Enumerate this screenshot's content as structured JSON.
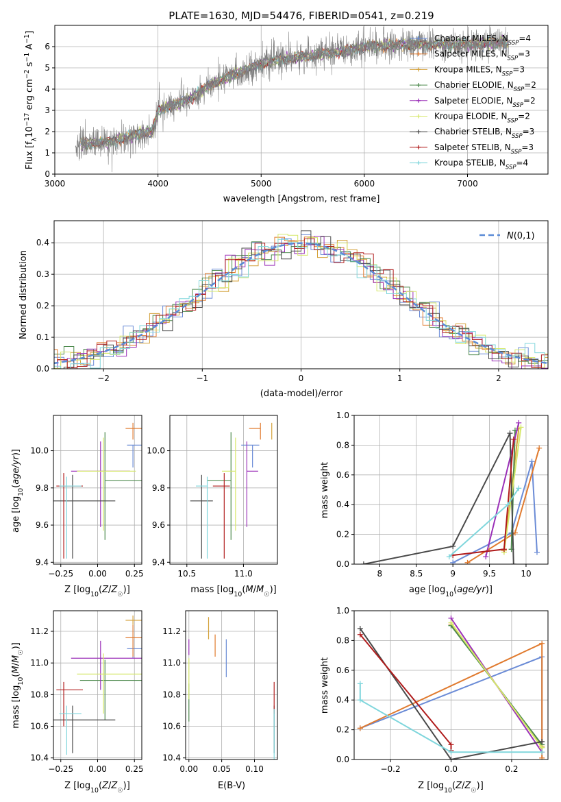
{
  "colors": {
    "grid": "#b0b0b0",
    "axis": "#000000",
    "spectrum": "#808080",
    "dashed": "#5b8bd6"
  },
  "series_list": [
    {
      "name": "Chabrier MILES, N$_{SSP}$=4",
      "label_main": "Chabrier MILES, N",
      "label_sub": "SSP",
      "label_tail": "=4",
      "color": "#6a8bd6"
    },
    {
      "name": "Salpeter MILES, N$_{SSP}$=3",
      "label_main": "Salpeter MILES, N",
      "label_sub": "SSP",
      "label_tail": "=3",
      "color": "#e07a2e"
    },
    {
      "name": "Kroupa MILES, N$_{SSP}$=3",
      "label_main": "Kroupa MILES, N",
      "label_sub": "SSP",
      "label_tail": "=3",
      "color": "#d4a13a"
    },
    {
      "name": "Chabrier ELODIE, N$_{SSP}$=2",
      "label_main": "Chabrier ELODIE, N",
      "label_sub": "SSP",
      "label_tail": "=2",
      "color": "#4e8a4e"
    },
    {
      "name": "Salpeter ELODIE, N$_{SSP}$=2",
      "label_main": "Salpeter ELODIE, N",
      "label_sub": "SSP",
      "label_tail": "=2",
      "color": "#9b30b8"
    },
    {
      "name": "Kroupa ELODIE, N$_{SSP}$=2",
      "label_main": "Kroupa ELODIE, N",
      "label_sub": "SSP",
      "label_tail": "=2",
      "color": "#d6e86a"
    },
    {
      "name": "Chabrier STELIB, N$_{SSP}$=3",
      "label_main": "Chabrier STELIB, N",
      "label_sub": "SSP",
      "label_tail": "=3",
      "color": "#4a4a4a"
    },
    {
      "name": "Salpeter STELIB, N$_{SSP}$=3",
      "label_main": "Salpeter STELIB, N",
      "label_sub": "SSP",
      "label_tail": "=3",
      "color": "#b01c1c"
    },
    {
      "name": "Kroupa STELIB, N$_{SSP}$=4",
      "label_main": "Kroupa STELIB, N",
      "label_sub": "SSP",
      "label_tail": "=4",
      "color": "#7fd6dc"
    }
  ],
  "chart_data": [
    {
      "id": "spectrum",
      "type": "line",
      "title": "PLATE=1630, MJD=54476, FIBERID=0541, z=0.219",
      "xlabel": "wavelength [Angstrom, rest frame]",
      "ylabel_parts": [
        "Flux [f",
        "λ",
        "10",
        "−17",
        " erg cm",
        "−2",
        " s",
        "−1",
        " A",
        "−1",
        "]"
      ],
      "xlim": [
        3000,
        7780
      ],
      "ylim": [
        0,
        7
      ],
      "xticks": [
        3000,
        4000,
        5000,
        6000,
        7000
      ],
      "yticks": [
        0,
        1,
        2,
        3,
        4,
        5,
        6
      ],
      "wavelength_range": [
        3200,
        7400
      ],
      "continuum": {
        "x": [
          3200,
          3500,
          3600,
          3800,
          3950,
          4000,
          4300,
          4500,
          4800,
          5000,
          5200,
          5500,
          5800,
          6000,
          6500,
          7000,
          7400
        ],
        "y": [
          1.4,
          1.5,
          1.6,
          1.9,
          2.0,
          3.0,
          3.5,
          4.2,
          4.8,
          5.2,
          5.4,
          5.6,
          5.8,
          6.0,
          6.1,
          6.1,
          6.2
        ]
      },
      "legend": "upper right"
    },
    {
      "id": "residuals",
      "type": "histogram",
      "xlabel": "(data-model)/error",
      "ylabel": "Normed distribution",
      "xlim": [
        -2.5,
        2.5
      ],
      "ylim": [
        0,
        0.47
      ],
      "xticks": [
        -2,
        -1,
        0,
        1,
        2
      ],
      "xtick_labels": [
        "−2",
        "−1",
        "0",
        "1",
        "2"
      ],
      "yticks": [
        0.0,
        0.1,
        0.2,
        0.3,
        0.4
      ],
      "bin_width": 0.1,
      "reference_label": "N(0,1)",
      "legend": "upper right"
    },
    {
      "id": "age_vs_Z",
      "type": "scatter",
      "xlabel": "Z [log10(Z/Z☉)]",
      "ylabel": "age  [log10(age/yr)]",
      "xlim": [
        -0.3,
        0.3
      ],
      "ylim": [
        9.39,
        10.19
      ],
      "xticks": [
        -0.25,
        0.0,
        0.25
      ],
      "xtick_labels": [
        "−0.25",
        "0.00",
        "0.25"
      ],
      "yticks": [
        9.4,
        9.6,
        9.8,
        10.0
      ],
      "points": [
        {
          "series": 0,
          "x": 0.24,
          "y": 10.03,
          "xerr": [
            0.04,
            0.06
          ],
          "yerr": [
            0.12,
            0.0
          ]
        },
        {
          "series": 1,
          "x": 0.24,
          "y": 10.12,
          "xerr": [
            0.05,
            0.07
          ],
          "yerr": [
            0.06,
            0.03
          ]
        },
        {
          "series": 3,
          "x": 0.05,
          "y": 9.84,
          "xerr": [
            0.0,
            0.3
          ],
          "yerr": [
            0.32,
            0.26
          ]
        },
        {
          "series": 4,
          "x": 0.02,
          "y": 9.89,
          "xerr": [
            0.2,
            0.2
          ],
          "yerr": [
            0.3,
            0.16
          ]
        },
        {
          "series": 5,
          "x": 0.04,
          "y": 9.89,
          "xerr": [
            0.18,
            0.22
          ],
          "yerr": [
            0.32,
            0.18
          ]
        },
        {
          "series": 6,
          "x": -0.17,
          "y": 9.73,
          "xerr": [
            0.13,
            0.29
          ],
          "yerr": [
            0.31,
            0.14
          ]
        },
        {
          "series": 7,
          "x": -0.23,
          "y": 9.81,
          "xerr": [
            0.05,
            0.13
          ],
          "yerr": [
            0.39,
            0.07
          ]
        },
        {
          "series": 8,
          "x": -0.21,
          "y": 9.81,
          "xerr": [
            0.05,
            0.1
          ],
          "yerr": [
            0.39,
            0.05
          ]
        }
      ]
    },
    {
      "id": "age_vs_mass",
      "type": "scatter",
      "xlabel": "mass [log10(M/M☉)]",
      "ylabel": "",
      "xlim": [
        10.35,
        11.3
      ],
      "ylim": [
        9.39,
        10.19
      ],
      "xticks": [
        10.5,
        11.0
      ],
      "xtick_labels": [
        "10.5",
        "11.0"
      ],
      "yticks": [
        9.4,
        9.6,
        9.8,
        10.0
      ],
      "points": [
        {
          "series": 0,
          "x": 11.08,
          "y": 10.03,
          "xerr": [
            0.1,
            0.06
          ],
          "yerr": [
            0.12,
            0.0
          ]
        },
        {
          "series": 1,
          "x": 11.15,
          "y": 10.12,
          "xerr": [
            0.1,
            0.0
          ],
          "yerr": [
            0.06,
            0.03
          ]
        },
        {
          "series": 2,
          "x": 11.25,
          "y": 10.12,
          "xerr": [
            0.0,
            0.0
          ],
          "yerr": [
            0.06,
            0.03
          ]
        },
        {
          "series": 3,
          "x": 10.89,
          "y": 9.84,
          "xerr": [
            0.21,
            0.0
          ],
          "yerr": [
            0.32,
            0.26
          ]
        },
        {
          "series": 4,
          "x": 11.03,
          "y": 9.89,
          "xerr": [
            0.0,
            0.1
          ],
          "yerr": [
            0.3,
            0.16
          ]
        },
        {
          "series": 5,
          "x": 10.93,
          "y": 9.89,
          "xerr": [
            0.12,
            0.0
          ],
          "yerr": [
            0.32,
            0.18
          ]
        },
        {
          "series": 6,
          "x": 10.63,
          "y": 9.73,
          "xerr": [
            0.1,
            0.1
          ],
          "yerr": [
            0.31,
            0.14
          ]
        },
        {
          "series": 7,
          "x": 10.83,
          "y": 9.81,
          "xerr": [
            0.1,
            0.05
          ],
          "yerr": [
            0.39,
            0.07
          ]
        },
        {
          "series": 8,
          "x": 10.68,
          "y": 9.81,
          "xerr": [
            0.1,
            0.0
          ],
          "yerr": [
            0.39,
            0.05
          ]
        }
      ]
    },
    {
      "id": "weight_vs_age",
      "type": "line",
      "xlabel": "age  [log10(age/yr)]",
      "ylabel": "mass weight",
      "xlim": [
        7.65,
        10.3
      ],
      "ylim": [
        0,
        1
      ],
      "xticks": [
        8.0,
        8.5,
        9.0,
        9.5,
        10.0
      ],
      "yticks": [
        0.0,
        0.2,
        0.4,
        0.6,
        0.8,
        1.0
      ],
      "series": [
        {
          "series": 0,
          "x": [
            9.0,
            9.8,
            10.08,
            10.15
          ],
          "y": [
            0.01,
            0.21,
            0.69,
            0.08
          ]
        },
        {
          "series": 1,
          "x": [
            9.2,
            9.85,
            10.18
          ],
          "y": [
            0.01,
            0.21,
            0.78
          ]
        },
        {
          "series": 2,
          "x": [
            9.7,
            9.9
          ],
          "y": [
            0.09,
            0.91
          ]
        },
        {
          "series": 3,
          "x": [
            9.8,
            9.85
          ],
          "y": [
            0.1,
            0.9
          ]
        },
        {
          "series": 4,
          "x": [
            9.45,
            9.9
          ],
          "y": [
            0.05,
            0.95
          ]
        },
        {
          "series": 5,
          "x": [
            9.7,
            9.93
          ],
          "y": [
            0.08,
            0.92
          ]
        },
        {
          "series": 6,
          "x": [
            7.78,
            9.0,
            9.78,
            9.83
          ],
          "y": [
            0.0,
            0.12,
            0.88,
            0.0
          ]
        },
        {
          "series": 7,
          "x": [
            9.0,
            9.7,
            9.83
          ],
          "y": [
            0.06,
            0.1,
            0.84
          ]
        },
        {
          "series": 8,
          "x": [
            8.95,
            9.75,
            9.9
          ],
          "y": [
            0.05,
            0.4,
            0.51
          ]
        }
      ]
    },
    {
      "id": "mass_vs_Z",
      "type": "scatter",
      "xlabel": "Z [log10(Z/Z☉)]",
      "ylabel": "mass [log10(M/M☉)]",
      "xlim": [
        -0.3,
        0.3
      ],
      "ylim": [
        10.39,
        11.33
      ],
      "xticks": [
        -0.25,
        0.0,
        0.25
      ],
      "xtick_labels": [
        "−0.25",
        "0.00",
        "0.25"
      ],
      "yticks": [
        10.4,
        10.6,
        10.8,
        11.0,
        11.2
      ],
      "points": [
        {
          "series": 0,
          "x": 0.24,
          "y": 11.09,
          "xerr": [
            0.04,
            0.06
          ],
          "yerr": [
            0.06,
            0.06
          ]
        },
        {
          "series": 1,
          "x": 0.24,
          "y": 11.16,
          "xerr": [
            0.05,
            0.07
          ],
          "yerr": [
            0.12,
            0.08
          ]
        },
        {
          "series": 2,
          "x": 0.24,
          "y": 11.27,
          "xerr": [
            0.05,
            0.06
          ],
          "yerr": [
            0.03,
            0.03
          ]
        },
        {
          "series": 3,
          "x": 0.05,
          "y": 10.89,
          "xerr": [
            0.17,
            0.25
          ],
          "yerr": [
            0.25,
            0.13
          ]
        },
        {
          "series": 4,
          "x": 0.02,
          "y": 11.03,
          "xerr": [
            0.2,
            0.28
          ],
          "yerr": [
            0.2,
            0.11
          ]
        },
        {
          "series": 5,
          "x": 0.04,
          "y": 10.93,
          "xerr": [
            0.18,
            0.26
          ],
          "yerr": [
            0.25,
            0.13
          ]
        },
        {
          "series": 6,
          "x": -0.17,
          "y": 10.64,
          "xerr": [
            0.13,
            0.29
          ],
          "yerr": [
            0.21,
            0.09
          ]
        },
        {
          "series": 7,
          "x": -0.23,
          "y": 10.83,
          "xerr": [
            0.05,
            0.13
          ],
          "yerr": [
            0.23,
            0.05
          ]
        },
        {
          "series": 8,
          "x": -0.21,
          "y": 10.68,
          "xerr": [
            0.05,
            0.1
          ],
          "yerr": [
            0.26,
            0.05
          ]
        }
      ]
    },
    {
      "id": "mass_vs_ebv",
      "type": "scatter",
      "xlabel": "E(B-V)",
      "ylabel": "",
      "xlim": [
        -0.005,
        0.135
      ],
      "ylim": [
        10.39,
        11.33
      ],
      "xticks": [
        0.0,
        0.05,
        0.1
      ],
      "xtick_labels": [
        "0.00",
        "0.05",
        "0.10"
      ],
      "yticks": [
        10.4,
        10.6,
        10.8,
        11.0,
        11.2
      ],
      "points": [
        {
          "series": 0,
          "x": 0.057,
          "y": 11.03,
          "xerr": [
            0,
            0
          ],
          "yerr": [
            0.12,
            0.12
          ]
        },
        {
          "series": 1,
          "x": 0.04,
          "y": 11.11,
          "xerr": [
            0,
            0
          ],
          "yerr": [
            0.07,
            0.07
          ]
        },
        {
          "series": 2,
          "x": 0.03,
          "y": 11.22,
          "xerr": [
            0,
            0
          ],
          "yerr": [
            0.07,
            0.07
          ]
        },
        {
          "series": 3,
          "x": 0.0,
          "y": 10.75,
          "xerr": [
            0,
            0
          ],
          "yerr": [
            0.12,
            0.12
          ]
        },
        {
          "series": 4,
          "x": 0.0,
          "y": 11.1,
          "xerr": [
            0,
            0
          ],
          "yerr": [
            0.05,
            0.05
          ]
        },
        {
          "series": 5,
          "x": 0.0,
          "y": 10.9,
          "xerr": [
            0,
            0
          ],
          "yerr": [
            0.13,
            0.13
          ]
        },
        {
          "series": 6,
          "x": 0.13,
          "y": 10.58,
          "xerr": [
            0,
            0
          ],
          "yerr": [
            0.15,
            0.15
          ]
        },
        {
          "series": 7,
          "x": 0.13,
          "y": 10.78,
          "xerr": [
            0,
            0
          ],
          "yerr": [
            0.1,
            0.1
          ]
        },
        {
          "series": 8,
          "x": 0.13,
          "y": 10.55,
          "xerr": [
            0,
            0
          ],
          "yerr": [
            0.16,
            0.16
          ]
        }
      ]
    },
    {
      "id": "weight_vs_Z",
      "type": "line",
      "xlabel": "Z [log10(Z/Z☉)]",
      "ylabel": "mass weight",
      "xlim": [
        -0.32,
        0.32
      ],
      "ylim": [
        0,
        1
      ],
      "xticks": [
        -0.2,
        0.0,
        0.2
      ],
      "xtick_labels": [
        "−0.2",
        "0.0",
        "0.2"
      ],
      "yticks": [
        0.0,
        0.2,
        0.4,
        0.6,
        0.8,
        1.0
      ],
      "series": [
        {
          "series": 0,
          "x": [
            -0.3,
            0.3,
            0.3
          ],
          "y": [
            0.21,
            0.69,
            0.08
          ]
        },
        {
          "series": 1,
          "x": [
            -0.3,
            0.3,
            0.3
          ],
          "y": [
            0.21,
            0.78,
            0.01
          ]
        },
        {
          "series": 2,
          "x": [
            0.0,
            0.3
          ],
          "y": [
            0.91,
            0.09
          ]
        },
        {
          "series": 3,
          "x": [
            0.0,
            0.3
          ],
          "y": [
            0.9,
            0.1
          ]
        },
        {
          "series": 4,
          "x": [
            0.0,
            0.3
          ],
          "y": [
            0.95,
            0.05
          ]
        },
        {
          "series": 5,
          "x": [
            0.0,
            0.3
          ],
          "y": [
            0.92,
            0.08
          ]
        },
        {
          "series": 6,
          "x": [
            -0.3,
            0.0,
            0.3
          ],
          "y": [
            0.88,
            0.0,
            0.12
          ]
        },
        {
          "series": 7,
          "x": [
            -0.3,
            0.0,
            0.0
          ],
          "y": [
            0.84,
            0.1,
            0.06
          ]
        },
        {
          "series": 8,
          "x": [
            -0.3,
            -0.3,
            0.0,
            0.3
          ],
          "y": [
            0.51,
            0.4,
            0.05,
            0.05
          ]
        }
      ]
    }
  ]
}
